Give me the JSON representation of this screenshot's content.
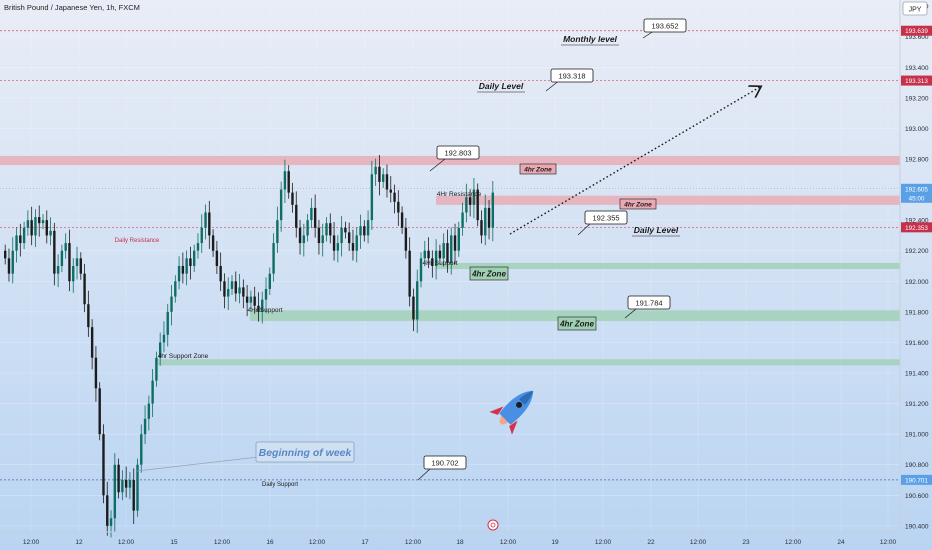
{
  "header": {
    "symbol_title": "British Pound / Japanese Yen, 1h, FXCM"
  },
  "currency_label": "JPY",
  "colors": {
    "background_top": "#e9edf6",
    "background_bottom": "#b9d4f2",
    "candle_up": "#0f6e63",
    "candle_down": "#1c1c1c",
    "resistance_zone": "#e8a9b3",
    "support_zone": "#9fd0b4",
    "level_line": "#d9475a",
    "price_badge": "#c6304a",
    "current_badge": "#5aa0e6"
  },
  "chart_data": {
    "type": "candlestick",
    "y_axis": {
      "min": 190.36,
      "max": 193.84,
      "ticks": [
        "193.800",
        "193.600",
        "193.400",
        "193.200",
        "193.000",
        "192.800",
        "192.600",
        "192.400",
        "192.200",
        "192.000",
        "191.800",
        "191.600",
        "191.400",
        "191.200",
        "191.000",
        "190.800",
        "190.600",
        "190.400"
      ]
    },
    "x_axis_ticks": [
      "12:00",
      "12",
      "12:00",
      "15",
      "12:00",
      "16",
      "12:00",
      "17",
      "12:00",
      "18",
      "12:00",
      "19",
      "12:00",
      "22",
      "12:00",
      "23",
      "12:00",
      "24",
      "12:00"
    ],
    "price_badges": [
      {
        "value": "193.639",
        "kind": "level"
      },
      {
        "value": "193.313",
        "kind": "level"
      },
      {
        "value": "192.605",
        "kind": "current"
      },
      {
        "value": "45:00",
        "kind": "countdown"
      },
      {
        "value": "192.353",
        "kind": "level"
      },
      {
        "value": "190.701",
        "kind": "current"
      }
    ],
    "horizontal_levels": [
      {
        "name": "monthly-level",
        "value": 193.639
      },
      {
        "name": "daily-level-upper",
        "value": 193.313
      },
      {
        "name": "daily-resistance",
        "value": 192.353
      },
      {
        "name": "daily-support",
        "value": 190.701
      }
    ],
    "zones": [
      {
        "name": "4hr-zone-top",
        "low": 192.76,
        "high": 192.82,
        "label": "4hr Zone"
      },
      {
        "name": "4hr-resistance-zone",
        "low": 192.5,
        "high": 192.56,
        "label": "4hr Zone"
      },
      {
        "name": "4hr-support-zone",
        "low": 192.08,
        "high": 192.12,
        "label": "4hr Zone"
      },
      {
        "name": "4hr-zone-lower",
        "low": 191.74,
        "high": 191.81,
        "label": "4hr Zone"
      },
      {
        "name": "4hr-support-zone-bottom",
        "low": 191.45,
        "high": 191.49,
        "label": ""
      }
    ],
    "callouts": [
      "193.652",
      "193.318",
      "192.803",
      "192.355",
      "191.784",
      "190.702"
    ],
    "labels": {
      "monthly_level": "Monthly level",
      "daily_level_upper": "Daily Level",
      "daily_level_lower": "Daily Level",
      "daily_resistance": "Daily Resistance",
      "daily_support": "Daily Support",
      "hr4_resistance": "4Hr Resistance",
      "hr4_support_a": "4Hr Support",
      "hr4_support_b": "4Hr Support",
      "hr4_support_zone": "4hr Support Zone",
      "beginning_of_week": "Beginning of week"
    },
    "closes": [
      192.15,
      192.05,
      192.2,
      192.3,
      192.25,
      192.35,
      192.4,
      192.3,
      192.42,
      192.38,
      192.4,
      192.3,
      192.33,
      192.05,
      192.1,
      192.2,
      192.25,
      192.0,
      192.1,
      192.15,
      192.05,
      191.85,
      191.7,
      191.5,
      191.3,
      191.0,
      190.6,
      190.4,
      190.45,
      190.8,
      190.62,
      190.7,
      190.65,
      190.7,
      190.5,
      190.8,
      191.0,
      191.1,
      191.2,
      191.35,
      191.5,
      191.6,
      191.65,
      191.8,
      191.9,
      192.0,
      192.1,
      192.05,
      192.15,
      192.1,
      192.2,
      192.25,
      192.35,
      192.45,
      192.3,
      192.2,
      192.1,
      192.0,
      191.9,
      191.95,
      192.0,
      191.92,
      191.96,
      191.9,
      191.86,
      191.9,
      191.84,
      191.8,
      191.88,
      191.95,
      192.05,
      192.25,
      192.4,
      192.6,
      192.72,
      192.58,
      192.5,
      192.35,
      192.25,
      192.3,
      192.4,
      192.48,
      192.35,
      192.25,
      192.3,
      192.38,
      192.3,
      192.2,
      192.25,
      192.35,
      192.32,
      192.25,
      192.2,
      192.3,
      192.36,
      192.3,
      192.4,
      192.7,
      192.75,
      192.65,
      192.7,
      192.6,
      192.58,
      192.52,
      192.45,
      192.35,
      192.2,
      191.9,
      191.75,
      192.0,
      192.15,
      192.2,
      192.15,
      192.1,
      192.2,
      192.15,
      192.25,
      192.12,
      192.3,
      192.2,
      192.35,
      192.45,
      192.55,
      192.5,
      192.6,
      192.4,
      192.3,
      192.48,
      192.35,
      192.58
    ]
  },
  "annotation_icon": "rocket-icon",
  "bottom_icon": "target-icon"
}
